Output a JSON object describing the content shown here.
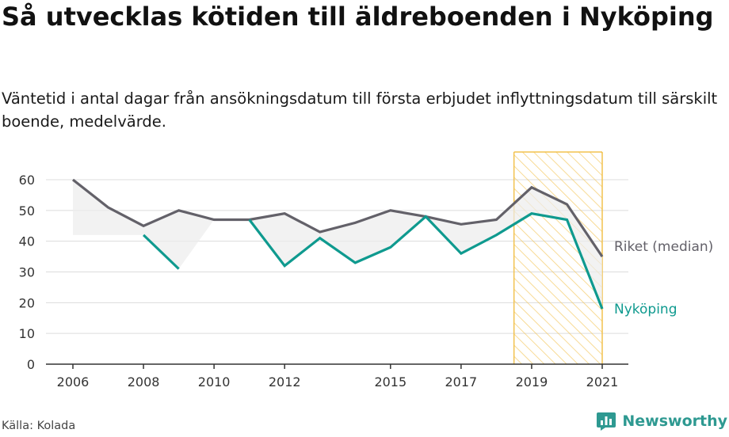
{
  "title": "Så utvecklas kötiden till äldreboenden i Nyköping",
  "subtitle": "Väntetid i antal dagar från ansökningsdatum till första erbjudet inflyttningsdatum till särskilt boende, medelvärde.",
  "source": "Källa: Kolada",
  "brand": "Newsworthy",
  "colors": {
    "riket": "#636169",
    "nykoping": "#0f9a8f",
    "highlight": "#f2c24f",
    "band": "#ededed",
    "grid": "#dcdcdc",
    "axis": "#333333"
  },
  "chart_data": {
    "type": "line",
    "x_ticks": [
      2006,
      2008,
      2010,
      2012,
      2015,
      2017,
      2019,
      2021
    ],
    "y_ticks": [
      0,
      10,
      20,
      30,
      40,
      50,
      60
    ],
    "ylim": [
      0,
      60
    ],
    "xlim": [
      2006,
      2021
    ],
    "highlight_range": [
      2018.5,
      2021
    ],
    "series": [
      {
        "name": "Riket (median)",
        "color": "#636169",
        "points": [
          [
            2006,
            60
          ],
          [
            2007,
            51
          ],
          [
            2008,
            45
          ],
          [
            2009,
            50
          ],
          [
            2010,
            47
          ],
          [
            2011,
            47
          ],
          [
            2012,
            49
          ],
          [
            2013,
            43
          ],
          [
            2014,
            46
          ],
          [
            2015,
            50
          ],
          [
            2016,
            48
          ],
          [
            2017,
            45.5
          ],
          [
            2018,
            47
          ],
          [
            2019,
            57.5
          ],
          [
            2020,
            52
          ],
          [
            2021,
            35
          ]
        ]
      },
      {
        "name": "Nyköping",
        "color": "#0f9a8f",
        "points": [
          [
            2008,
            42
          ],
          [
            2009,
            31
          ],
          [
            2010,
            null
          ],
          [
            2011,
            47
          ],
          [
            2012,
            32
          ],
          [
            2013,
            41
          ],
          [
            2014,
            33
          ],
          [
            2015,
            38
          ],
          [
            2016,
            48
          ],
          [
            2017,
            36
          ],
          [
            2018,
            42
          ],
          [
            2019,
            49
          ],
          [
            2020,
            47
          ],
          [
            2021,
            18
          ]
        ]
      }
    ],
    "grid": true,
    "legend": "inline labels at line ends"
  }
}
